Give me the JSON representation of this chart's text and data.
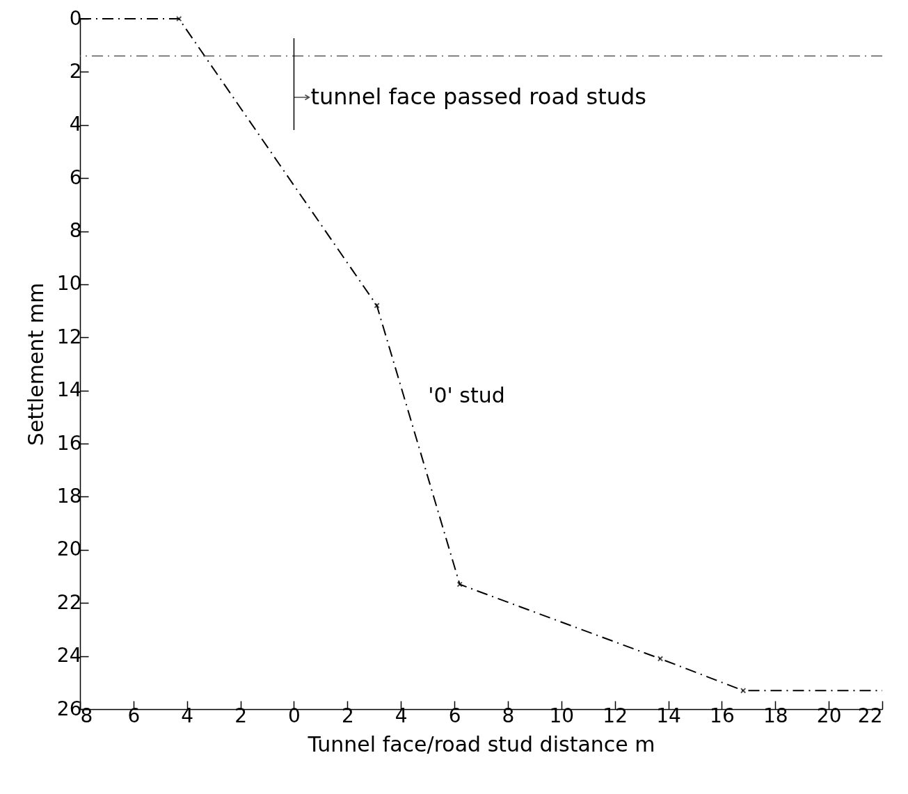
{
  "chart_data": {
    "type": "line",
    "xlabel": "Tunnel face/road stud distance m",
    "ylabel": "Settlement mm",
    "xlim": [
      -8,
      22
    ],
    "xticks": [
      {
        "value": -8,
        "label": "8"
      },
      {
        "value": -6,
        "label": "6"
      },
      {
        "value": -4,
        "label": "4"
      },
      {
        "value": -2,
        "label": "2"
      },
      0,
      2,
      4,
      6,
      8,
      10,
      12,
      14,
      16,
      18,
      20,
      22
    ],
    "ylim": [
      26,
      0
    ],
    "yticks": [
      0,
      2,
      4,
      6,
      8,
      10,
      12,
      14,
      16,
      18,
      20,
      22,
      24,
      26
    ],
    "series": [
      {
        "name": "'0' stud",
        "color": "#000000",
        "line_style": "dashed",
        "x": [
          -8,
          -4.3,
          3.1,
          6.2,
          13.7,
          16.8,
          22
        ],
        "values": [
          0,
          0,
          10.8,
          21.3,
          24.1,
          25.3,
          25.3
        ]
      },
      {
        "type": "scatter",
        "marker": "cross",
        "color": "#000000",
        "x": [
          -4.3,
          3.1,
          6.2,
          13.7,
          16.8
        ],
        "values": [
          0,
          10.8,
          21.3,
          24.1,
          25.3
        ]
      }
    ],
    "ref_lines": [
      {
        "axis": "y",
        "value": 1.4,
        "color": "#555555",
        "line_style": "dashed"
      },
      {
        "axis": "x",
        "value": 0,
        "color": "#000000",
        "line_style": "solid",
        "label": "tunnel face passed road studs"
      }
    ]
  }
}
